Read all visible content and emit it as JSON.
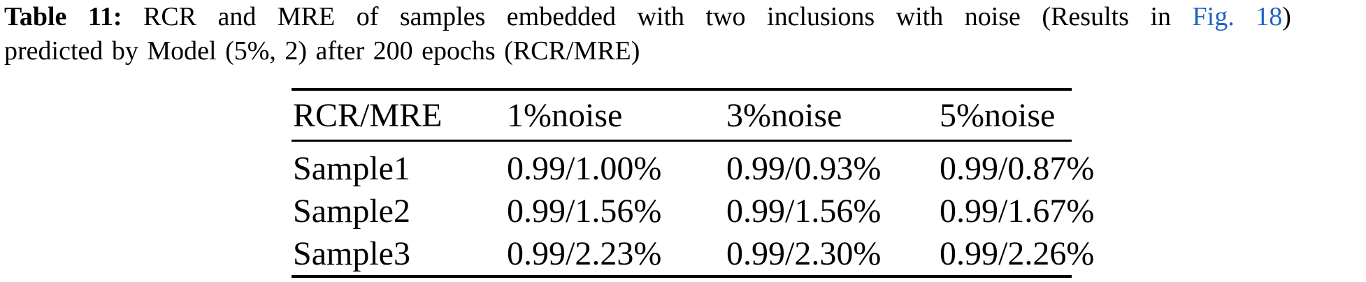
{
  "caption": {
    "label": "Table 11:",
    "text_before_link": "RCR and MRE of samples embedded with two inclusions with noise (Results in",
    "link": "Fig. 18",
    "text_after_link": ")",
    "line2": "predicted by Model (5%, 2) after 200 epochs (RCR/MRE)"
  },
  "colors": {
    "text": "#000000",
    "link_blue": "#1e63c4",
    "background": "#ffffff"
  },
  "table": {
    "header": [
      "RCR/MRE",
      "1%noise",
      "3%noise",
      "5%noise"
    ],
    "rows": [
      {
        "label": "Sample1",
        "values": [
          "0.99/1.00%",
          "0.99/0.93%",
          "0.99/0.87%"
        ]
      },
      {
        "label": "Sample2",
        "values": [
          "0.99/1.56%",
          "0.99/1.56%",
          "0.99/1.67%"
        ]
      },
      {
        "label": "Sample3",
        "values": [
          "0.99/2.23%",
          "0.99/2.30%",
          "0.99/2.26%"
        ]
      }
    ]
  }
}
